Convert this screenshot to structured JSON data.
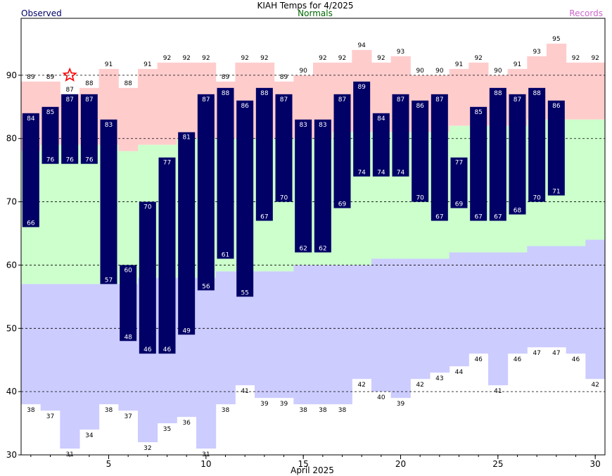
{
  "header": {
    "title": "KIAH Temps for 4/2025",
    "observed_label": "Observed",
    "normals_label": "Normals",
    "records_label": "Records"
  },
  "colors": {
    "observed": "#000066",
    "normals_text": "#006600",
    "records_text": "#cc66cc",
    "record_band": "#ffcccc",
    "normal_band": "#ccffcc",
    "record_low_band": "#ccccff",
    "star": "#ff0000"
  },
  "chart_data": {
    "type": "bar",
    "title": "KIAH Temps for 4/2025",
    "xlabel": "April 2025",
    "ylabel": "",
    "xlim": [
      0.5,
      30.5
    ],
    "ylim": [
      30,
      99
    ],
    "x_ticks": [
      "5",
      "10",
      "15",
      "20",
      "25",
      "30"
    ],
    "y_ticks": [
      "30",
      "40",
      "50",
      "60",
      "70",
      "80",
      "90"
    ],
    "gridlines": [
      40,
      50,
      60,
      70,
      80,
      90
    ],
    "grid": true,
    "days": [
      1,
      2,
      3,
      4,
      5,
      6,
      7,
      8,
      9,
      10,
      11,
      12,
      13,
      14,
      15,
      16,
      17,
      18,
      19,
      20,
      21,
      22,
      23,
      24,
      25,
      26,
      27,
      28,
      29,
      30
    ],
    "series": [
      {
        "name": "Observed",
        "kind": "high",
        "values": [
          84,
          85,
          87,
          87,
          83,
          60,
          70,
          77,
          81,
          87,
          88,
          86,
          88,
          87,
          83,
          83,
          87,
          89,
          84,
          87,
          86,
          87,
          77,
          85,
          88,
          87,
          88,
          86,
          null,
          null
        ]
      },
      {
        "name": "Observed",
        "kind": "low",
        "values": [
          66,
          76,
          76,
          76,
          57,
          48,
          46,
          46,
          49,
          56,
          61,
          55,
          67,
          70,
          62,
          62,
          69,
          74,
          74,
          74,
          70,
          67,
          69,
          67,
          67,
          68,
          70,
          71,
          null,
          null
        ]
      },
      {
        "name": "Normals",
        "kind": "high",
        "values": [
          78,
          79,
          79,
          79,
          79,
          78,
          79,
          79,
          80,
          80,
          80,
          80,
          80,
          80,
          80,
          80,
          81,
          81,
          81,
          81,
          81,
          81,
          82,
          82,
          82,
          82,
          83,
          83,
          83,
          83
        ]
      },
      {
        "name": "Normals",
        "kind": "low",
        "values": [
          57,
          57,
          57,
          57,
          57,
          57,
          58,
          58,
          58,
          58,
          59,
          59,
          59,
          59,
          60,
          60,
          60,
          60,
          61,
          61,
          61,
          61,
          62,
          62,
          62,
          62,
          63,
          63,
          63,
          64
        ]
      },
      {
        "name": "Records",
        "kind": "high",
        "values": [
          89,
          89,
          87,
          88,
          91,
          88,
          91,
          92,
          92,
          92,
          89,
          92,
          92,
          89,
          90,
          92,
          92,
          94,
          92,
          93,
          90,
          90,
          91,
          92,
          90,
          91,
          93,
          95,
          92,
          92
        ]
      },
      {
        "name": "Records",
        "kind": "low",
        "values": [
          38,
          37,
          31,
          34,
          38,
          37,
          32,
          35,
          36,
          31,
          38,
          41,
          39,
          39,
          38,
          38,
          38,
          42,
          40,
          39,
          42,
          43,
          44,
          46,
          41,
          46,
          47,
          47,
          46,
          42
        ]
      }
    ],
    "record_set": [
      {
        "day": 3,
        "value": 90
      }
    ]
  }
}
